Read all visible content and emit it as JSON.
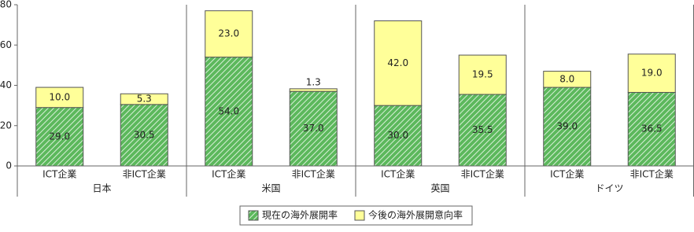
{
  "chart_data": {
    "type": "stacked-bar",
    "categories": [
      "ICT企業",
      "非ICT企業",
      "ICT企業",
      "非ICT企業",
      "ICT企業",
      "非ICT企業",
      "ICT企業",
      "非ICT企業"
    ],
    "groups": [
      "日本",
      "米国",
      "英国",
      "ドイツ"
    ],
    "series": [
      {
        "name": "現在の海外展開率",
        "color": "#5cb85c",
        "hatch": true,
        "values": [
          29.0,
          30.5,
          54.0,
          37.0,
          30.0,
          35.5,
          39.0,
          36.5
        ],
        "value_labels": [
          "29.0",
          "30.5",
          "54.0",
          "37.0",
          "30.0",
          "35.5",
          "39.0",
          "36.5"
        ]
      },
      {
        "name": "今後の海外展開意向率",
        "color": "#ffff99",
        "hatch": false,
        "values": [
          10.0,
          5.3,
          23.0,
          1.3,
          42.0,
          19.5,
          8.0,
          19.0
        ],
        "value_labels": [
          "10.0",
          "5.3",
          "23.0",
          "1.3",
          "42.0",
          "19.5",
          "8.0",
          "19.0"
        ]
      }
    ],
    "ylim": [
      0,
      80
    ],
    "yticks": [
      0,
      20,
      40,
      60,
      80
    ],
    "grid": false,
    "legend": "bottom"
  }
}
